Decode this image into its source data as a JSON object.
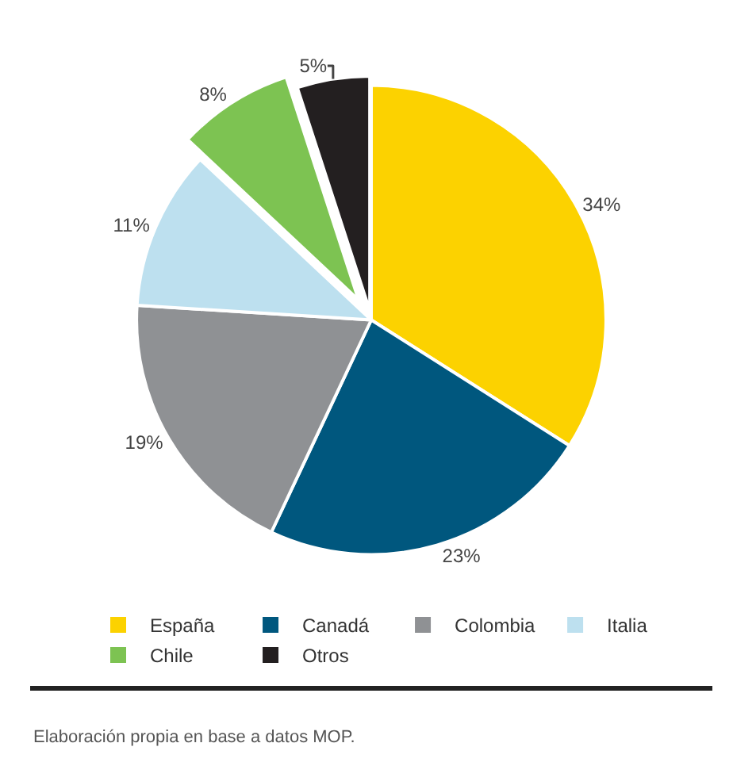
{
  "chart_data": {
    "type": "pie",
    "categories": [
      "España",
      "Canadá",
      "Colombia",
      "Italia",
      "Chile",
      "Otros"
    ],
    "values": [
      34,
      23,
      19,
      11,
      8,
      5
    ],
    "value_labels": [
      "34%",
      "23%",
      "19%",
      "11%",
      "8%",
      "5%"
    ],
    "colors": [
      "#fcd200",
      "#00577e",
      "#8f9194",
      "#bde0ef",
      "#7dc352",
      "#231f20"
    ],
    "legend": "bottom",
    "annotations": [
      "Elaboración propia en base a datos MOP."
    ]
  }
}
